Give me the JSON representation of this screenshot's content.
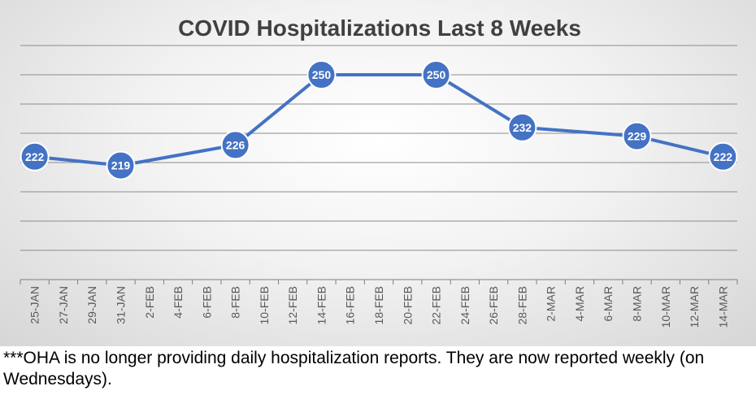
{
  "chart_data": {
    "type": "line",
    "title": "COVID Hospitalizations Last 8 Weeks",
    "xlabel": "",
    "ylabel": "",
    "ylim": [
      180,
      260
    ],
    "grid": true,
    "legend": "none",
    "x_ticks": [
      "25-JAN",
      "27-JAN",
      "29-JAN",
      "31-JAN",
      "2-FEB",
      "4-FEB",
      "6-FEB",
      "8-FEB",
      "10-FEB",
      "12-FEB",
      "14-FEB",
      "16-FEB",
      "18-FEB",
      "20-FEB",
      "22-FEB",
      "24-FEB",
      "26-FEB",
      "28-FEB",
      "2-MAR",
      "4-MAR",
      "6-MAR",
      "8-MAR",
      "10-MAR",
      "12-MAR",
      "14-MAR"
    ],
    "series": [
      {
        "name": "Hospitalizations",
        "color": "#4472C4",
        "x": [
          "25-JAN",
          "31-JAN",
          "8-FEB",
          "14-FEB",
          "22-FEB",
          "28-FEB",
          "8-MAR",
          "14-MAR"
        ],
        "values": [
          222,
          219,
          226,
          250,
          250,
          232,
          229,
          222
        ]
      }
    ]
  },
  "footnote": "***OHA is no longer providing daily hospitalization reports.  They are now reported weekly (on Wednesdays)."
}
